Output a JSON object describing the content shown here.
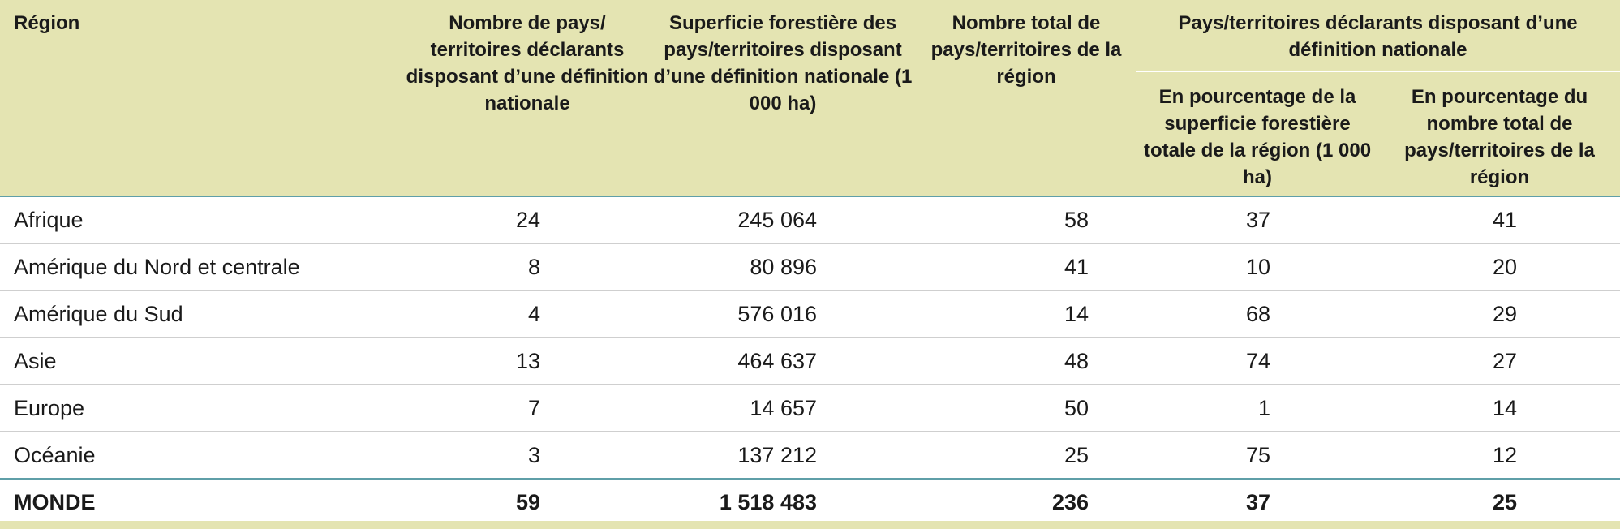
{
  "table": {
    "headers": {
      "region": "Région",
      "col1": "Nombre de pays/ territoires déclarants disposant d’une définition nationale",
      "col2": "Superficie forestière des pays/territoires disposant d’une définition nationale (1 000 ha)",
      "col3": "Nombre total de pays/territoires de la région",
      "group": "Pays/territoires déclarants disposant d’une définition nationale",
      "sub1": "En pourcentage de la superficie forestière totale de la région (1 000 ha)",
      "sub2": "En pourcentage du nombre total de pays/territoires de la région"
    },
    "rows": [
      {
        "region": "Afrique",
        "n_countries": "24",
        "area": "245 064",
        "total": "58",
        "pct_area": "37",
        "pct_count": "41"
      },
      {
        "region": "Amérique du Nord et centrale",
        "n_countries": "8",
        "area": "80 896",
        "total": "41",
        "pct_area": "10",
        "pct_count": "20"
      },
      {
        "region": "Amérique du Sud",
        "n_countries": "4",
        "area": "576 016",
        "total": "14",
        "pct_area": "68",
        "pct_count": "29"
      },
      {
        "region": "Asie",
        "n_countries": "13",
        "area": "464 637",
        "total": "48",
        "pct_area": "74",
        "pct_count": "27"
      },
      {
        "region": "Europe",
        "n_countries": "7",
        "area": "14 657",
        "total": "50",
        "pct_area": "1",
        "pct_count": "14"
      },
      {
        "region": "Océanie",
        "n_countries": "3",
        "area": "137 212",
        "total": "25",
        "pct_area": "75",
        "pct_count": "12"
      }
    ],
    "total": {
      "region": "MONDE",
      "n_countries": "59",
      "area": "1 518 483",
      "total": "236",
      "pct_area": "37",
      "pct_count": "25"
    }
  },
  "colors": {
    "header_bg": "#e4e4b2",
    "rule_accent": "#5f9fa8",
    "row_rule": "#cfcfcf"
  }
}
